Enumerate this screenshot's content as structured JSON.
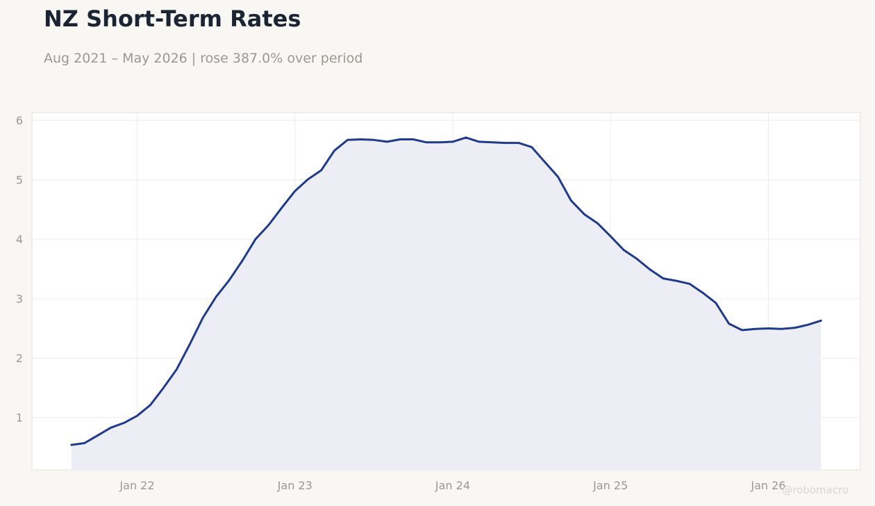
{
  "title": "NZ Short-Term Rates",
  "subtitle": "Aug 2021 – May 2026 | rose 387.0% over period",
  "watermark": "@robomacro",
  "colors": {
    "line": "#1f3a8a",
    "fill": "#edeef5",
    "background": "#f8f7f4",
    "plot_background": "#ffffff",
    "grid": "#ecebf3",
    "text": "#1b2433",
    "muted": "#9a9893"
  },
  "chart_data": {
    "type": "area",
    "x_unit": "month",
    "x": [
      "2021-08",
      "2021-09",
      "2021-10",
      "2021-11",
      "2021-12",
      "2022-01",
      "2022-02",
      "2022-03",
      "2022-04",
      "2022-05",
      "2022-06",
      "2022-07",
      "2022-08",
      "2022-09",
      "2022-10",
      "2022-11",
      "2022-12",
      "2023-01",
      "2023-02",
      "2023-03",
      "2023-04",
      "2023-05",
      "2023-06",
      "2023-07",
      "2023-08",
      "2023-09",
      "2023-10",
      "2023-11",
      "2023-12",
      "2024-01",
      "2024-02",
      "2024-03",
      "2024-04",
      "2024-05",
      "2024-06",
      "2024-07",
      "2024-08",
      "2024-09",
      "2024-10",
      "2024-11",
      "2024-12",
      "2025-01",
      "2025-02",
      "2025-03",
      "2025-04",
      "2025-05",
      "2025-06",
      "2025-07",
      "2025-08",
      "2025-09",
      "2025-10",
      "2025-11",
      "2025-12",
      "2026-01",
      "2026-02",
      "2026-03",
      "2026-04",
      "2026-05"
    ],
    "series": [
      {
        "values": [
          0.54,
          0.57,
          0.7,
          0.83,
          0.91,
          1.03,
          1.21,
          1.5,
          1.81,
          2.23,
          2.68,
          3.03,
          3.31,
          3.64,
          4.0,
          4.24,
          4.53,
          4.81,
          5.01,
          5.16,
          5.49,
          5.67,
          5.68,
          5.67,
          5.64,
          5.68,
          5.68,
          5.63,
          5.63,
          5.64,
          5.71,
          5.64,
          5.63,
          5.62,
          5.62,
          5.55,
          5.3,
          5.05,
          4.65,
          4.42,
          4.27,
          4.05,
          3.82,
          3.67,
          3.49,
          3.34,
          3.3,
          3.25,
          3.1,
          2.93,
          2.58,
          2.47,
          2.49,
          2.5,
          2.49,
          2.51,
          2.56,
          2.63
        ]
      }
    ],
    "x_ticks": [
      "Jan 22",
      "Jan 23",
      "Jan 24",
      "Jan 25",
      "Jan 26"
    ],
    "y_ticks": [
      "1",
      "2",
      "3",
      "4",
      "5",
      "6"
    ],
    "ylim": [
      0.12,
      6.13
    ],
    "xlim": [
      "2021-05",
      "2026-08"
    ],
    "grid": true,
    "legend": "none"
  }
}
